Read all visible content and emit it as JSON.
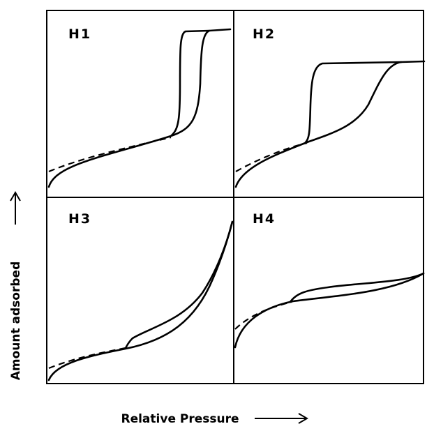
{
  "panels": [
    {
      "label": "H1"
    },
    {
      "label": "H2"
    },
    {
      "label": "H3"
    },
    {
      "label": "H4"
    }
  ],
  "y_axis_label": "Amount adsorbed",
  "x_axis_label": "Relative Pressure"
}
